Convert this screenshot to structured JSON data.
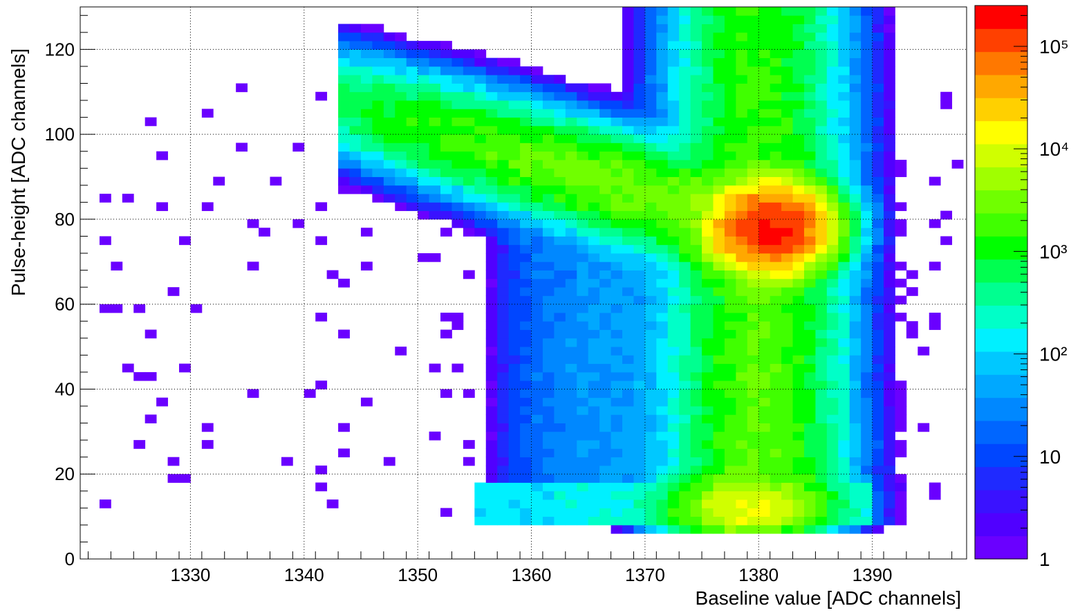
{
  "chart_data": {
    "type": "heatmap",
    "title": "",
    "xlabel": "Baseline value [ADC channels]",
    "ylabel": "Pulse-height [ADC channels]",
    "xlim": [
      1320.3,
      1398.3
    ],
    "ylim": [
      0,
      130
    ],
    "x_ticks": [
      1330,
      1340,
      1350,
      1360,
      1370,
      1380,
      1390
    ],
    "y_ticks": [
      0,
      20,
      40,
      60,
      80,
      100,
      120
    ],
    "grid": true,
    "colorbar": {
      "scale": "log",
      "range": [
        1,
        250000
      ],
      "ticks": [
        {
          "value": 1,
          "label": "1"
        },
        {
          "value": 10,
          "label": "10"
        },
        {
          "value": 100,
          "label": "10²"
        },
        {
          "value": 1000,
          "label": "10³"
        },
        {
          "value": 10000,
          "label": "10⁴"
        },
        {
          "value": 100000,
          "label": "10⁵"
        }
      ],
      "colors": [
        "#6a00ff",
        "#5000ff",
        "#3a12ff",
        "#1f2aff",
        "#0046ff",
        "#0066ff",
        "#0088ff",
        "#00a8ff",
        "#00c8ff",
        "#00f0ff",
        "#00ffc8",
        "#00ff90",
        "#00ff50",
        "#00ff00",
        "#40ff00",
        "#70ff00",
        "#a0ff00",
        "#d0ff00",
        "#ffff00",
        "#ffd000",
        "#ffa800",
        "#ff7800",
        "#ff4000",
        "#ff0000"
      ]
    },
    "features": [
      {
        "name": "core peak",
        "x": 1381,
        "y": 78,
        "counts": 200000
      },
      {
        "name": "vertical band",
        "x_range": [
          1374,
          1386
        ],
        "y_range": [
          8,
          130
        ]
      },
      {
        "name": "diagonal band",
        "from": [
          1350,
          102
        ],
        "to": [
          1380,
          78
        ]
      },
      {
        "name": "low pulse-height cluster",
        "x": 1379,
        "y": 12,
        "counts": 10000
      }
    ]
  }
}
